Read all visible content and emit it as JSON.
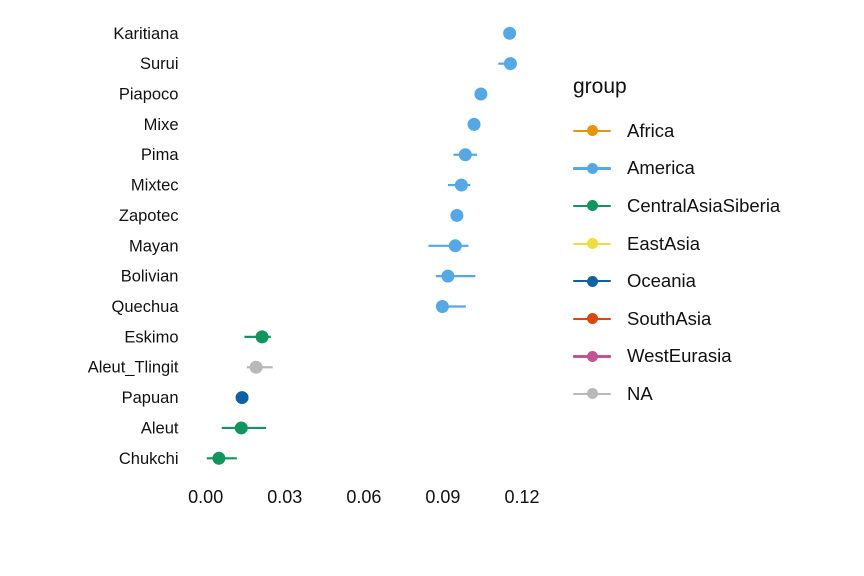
{
  "chart_data": {
    "type": "scatter",
    "subtype": "horizontal-dot-plot-with-error-bars",
    "title": "",
    "xlabel": "",
    "ylabel": "",
    "grid": false,
    "background": "#FFFFFF",
    "text_color": "#111111",
    "legend_position": "right",
    "legend_title": "group",
    "x_ticks": {
      "values": [
        0,
        0.03,
        0.06,
        0.09,
        0.12
      ],
      "labels": [
        "0.00",
        "0.03",
        "0.06",
        "0.09",
        "0.12"
      ]
    },
    "xlim": [
      -0.01,
      0.135
    ],
    "groups": [
      {
        "name": "Africa",
        "color": "#E8940C"
      },
      {
        "name": "America",
        "color": "#56A8E4"
      },
      {
        "name": "CentralAsiaSiberia",
        "color": "#12955C"
      },
      {
        "name": "EastAsia",
        "color": "#EEDD3D"
      },
      {
        "name": "Oceania",
        "color": "#0F61A5"
      },
      {
        "name": "SouthAsia",
        "color": "#D44B0B"
      },
      {
        "name": "WestEurasia",
        "color": "#C2548F"
      },
      {
        "name": "NA",
        "color": "#B9B9B9"
      }
    ],
    "points": [
      {
        "label": "Karitiana",
        "group": "America",
        "x": 0.1153,
        "xmin": 0.1135,
        "xmax": 0.117
      },
      {
        "label": "Surui",
        "group": "America",
        "x": 0.1156,
        "xmin": 0.111,
        "xmax": 0.117
      },
      {
        "label": "Piapoco",
        "group": "America",
        "x": 0.1044,
        "xmin": 0.103,
        "xmax": 0.106
      },
      {
        "label": "Mixe",
        "group": "America",
        "x": 0.1018,
        "xmin": 0.1,
        "xmax": 0.1035
      },
      {
        "label": "Pima",
        "group": "America",
        "x": 0.0985,
        "xmin": 0.094,
        "xmax": 0.1029
      },
      {
        "label": "Mixtec",
        "group": "America",
        "x": 0.097,
        "xmin": 0.0919,
        "xmax": 0.1004
      },
      {
        "label": "Zapotec",
        "group": "America",
        "x": 0.0953,
        "xmin": 0.094,
        "xmax": 0.0968
      },
      {
        "label": "Mayan",
        "group": "America",
        "x": 0.0947,
        "xmin": 0.0845,
        "xmax": 0.0997
      },
      {
        "label": "Bolivian",
        "group": "America",
        "x": 0.0919,
        "xmin": 0.0873,
        "xmax": 0.1023
      },
      {
        "label": "Quechua",
        "group": "America",
        "x": 0.0898,
        "xmin": 0.088,
        "xmax": 0.0987
      },
      {
        "label": "Eskimo",
        "group": "CentralAsiaSiberia",
        "x": 0.0214,
        "xmin": 0.0147,
        "xmax": 0.0247
      },
      {
        "label": "Aleut_Tlingit",
        "group": "NA",
        "x": 0.0191,
        "xmin": 0.0156,
        "xmax": 0.0254
      },
      {
        "label": "Papuan",
        "group": "Oceania",
        "x": 0.0138,
        "xmin": 0.0125,
        "xmax": 0.0152
      },
      {
        "label": "Aleut",
        "group": "CentralAsiaSiberia",
        "x": 0.0135,
        "xmin": 0.0061,
        "xmax": 0.0229
      },
      {
        "label": "Chukchi",
        "group": "CentralAsiaSiberia",
        "x": 0.005,
        "xmin": 0.0004,
        "xmax": 0.0118
      }
    ]
  }
}
